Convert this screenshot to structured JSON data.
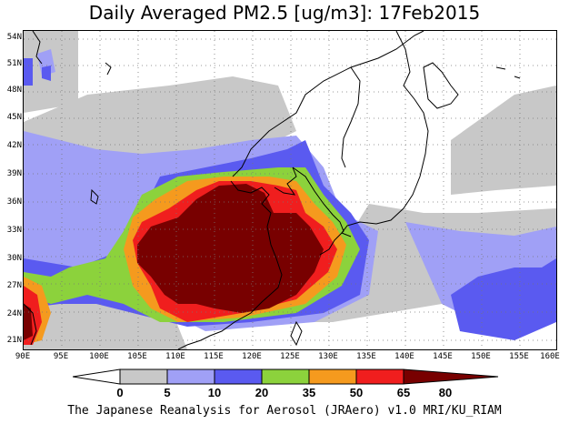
{
  "title": "Daily Averaged PM2.5 [ug/m3]: 17Feb2015",
  "footer": "The Japanese Reanalysis for Aerosol (JRAero) v1.0 MRI/KU_RIAM",
  "map": {
    "lat_labels": [
      "54N",
      "51N",
      "48N",
      "45N",
      "42N",
      "39N",
      "36N",
      "33N",
      "30N",
      "27N",
      "24N",
      "21N"
    ],
    "lon_labels": [
      "90E",
      "95E",
      "100E",
      "105E",
      "110E",
      "115E",
      "120E",
      "125E",
      "130E",
      "135E",
      "140E",
      "145E",
      "150E",
      "155E",
      "160E"
    ]
  },
  "legend": {
    "labels": [
      "0",
      "5",
      "10",
      "20",
      "35",
      "50",
      "65",
      "80"
    ],
    "colors": [
      "#ffffff",
      "#c8c8c8",
      "#a0a0f6",
      "#5a5af0",
      "#8cd23c",
      "#f59a1e",
      "#f01e1e",
      "#780000"
    ]
  }
}
